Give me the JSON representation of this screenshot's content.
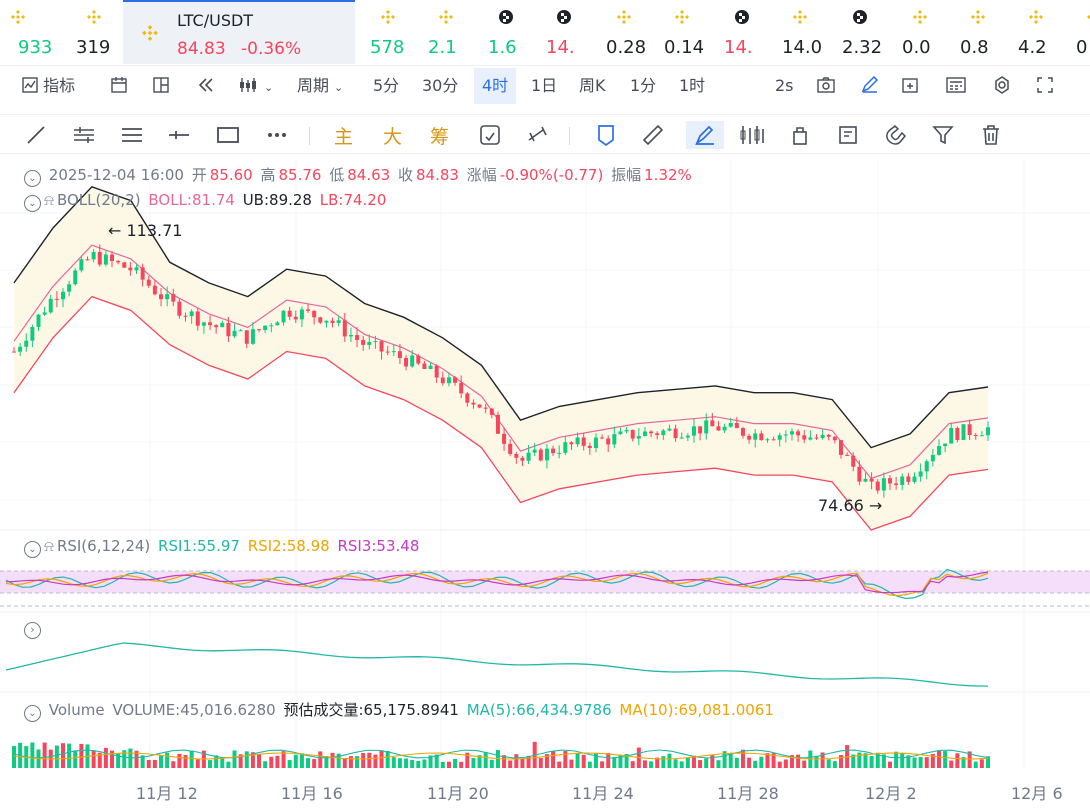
{
  "tickers": [
    {
      "price": "933",
      "color": "up",
      "icon": "bnb-icon"
    },
    {
      "price": "319",
      "color": "dk",
      "icon": "bnb-icon"
    },
    {
      "price": "578",
      "color": "up",
      "icon": "bnb-icon"
    },
    {
      "price": "2.1",
      "color": "up",
      "icon": "bnb-icon"
    },
    {
      "price": "1.6",
      "color": "up",
      "icon": "checker-icon"
    },
    {
      "price": "14.",
      "color": "dn",
      "icon": "checker-icon"
    },
    {
      "price": "0.28",
      "color": "dk",
      "icon": "bnb-icon"
    },
    {
      "price": "0.14",
      "color": "dk",
      "icon": "bnb-icon"
    },
    {
      "price": "14.",
      "color": "dn",
      "icon": "checker-icon"
    },
    {
      "price": "14.0",
      "color": "dk",
      "icon": "bnb-icon"
    },
    {
      "price": "2.32",
      "color": "dk",
      "icon": "checker-icon"
    },
    {
      "price": "0.0",
      "color": "dk",
      "icon": "bnb-icon"
    },
    {
      "price": "0.8",
      "color": "dk",
      "icon": "bnb-icon"
    },
    {
      "price": "4.2",
      "color": "dk",
      "icon": "bnb-icon"
    },
    {
      "price": "0",
      "color": "dk",
      "icon": "bnb-icon"
    }
  ],
  "active": {
    "symbol": "LTC/USDT",
    "price": "84.83",
    "change": "-0.36%"
  },
  "toolbar": {
    "indicator": "指标",
    "period": "周期",
    "intervals": [
      "5分",
      "30分",
      "4时",
      "1日",
      "周K",
      "1分",
      "1时"
    ],
    "selected": "4时",
    "refresh": "2s"
  },
  "drawtools": {
    "main": "主",
    "big": "大",
    "chip": "筹"
  },
  "candle_info": {
    "date": "2025-12-04 16:00",
    "open_label": "开",
    "open": "85.60",
    "high_label": "高",
    "high": "85.76",
    "low_label": "低",
    "low": "84.63",
    "close_label": "收",
    "close": "84.83",
    "chg_label": "涨幅",
    "chg": "-0.90%(-0.77)",
    "amp_label": "振幅",
    "amp": "1.32%"
  },
  "boll": {
    "name": "BOLL(20,2)",
    "mid": "BOLL:81.74",
    "ub": "UB:89.28",
    "lb": "LB:74.20"
  },
  "rsi": {
    "name": "RSI(6,12,24)",
    "r1": "RSI1:55.97",
    "r2": "RSI2:58.98",
    "r3": "RSI3:53.48"
  },
  "volume": {
    "name": "Volume",
    "vol": "VOLUME:45,016.6280",
    "est": "预估成交量:65,175.8941",
    "ma5": "MA(5):66,434.9786",
    "ma10": "MA(10):69,081.0061"
  },
  "markers": {
    "high": "113.71",
    "low": "74.66"
  },
  "xaxis": [
    "11月 12",
    "11月 16",
    "11月 20",
    "11月 24",
    "11月 28",
    "12月 2",
    "12月 6"
  ],
  "chart_data": {
    "type": "candlestick",
    "title": "LTC/USDT 4H",
    "price_series": [
      {
        "d": "11-09",
        "c": 96
      },
      {
        "d": "11-10",
        "c": 104
      },
      {
        "d": "11-11",
        "c": 110
      },
      {
        "d": "11-12",
        "c": 108
      },
      {
        "d": "11-13",
        "c": 103
      },
      {
        "d": "11-14",
        "c": 100
      },
      {
        "d": "11-15",
        "c": 98
      },
      {
        "d": "11-16",
        "c": 102
      },
      {
        "d": "11-17",
        "c": 101
      },
      {
        "d": "11-18",
        "c": 97
      },
      {
        "d": "11-19",
        "c": 95
      },
      {
        "d": "11-20",
        "c": 92
      },
      {
        "d": "11-21",
        "c": 88
      },
      {
        "d": "11-22",
        "c": 80
      },
      {
        "d": "11-23",
        "c": 82
      },
      {
        "d": "11-24",
        "c": 83
      },
      {
        "d": "11-25",
        "c": 84
      },
      {
        "d": "11-26",
        "c": 84.5
      },
      {
        "d": "11-27",
        "c": 85
      },
      {
        "d": "11-28",
        "c": 84
      },
      {
        "d": "11-29",
        "c": 84
      },
      {
        "d": "11-30",
        "c": 83
      },
      {
        "d": "12-01",
        "c": 76
      },
      {
        "d": "12-02",
        "c": 78
      },
      {
        "d": "12-03",
        "c": 84
      },
      {
        "d": "12-04",
        "c": 84.83
      }
    ],
    "extremes": {
      "high": 113.71,
      "low": 74.66
    }
  }
}
